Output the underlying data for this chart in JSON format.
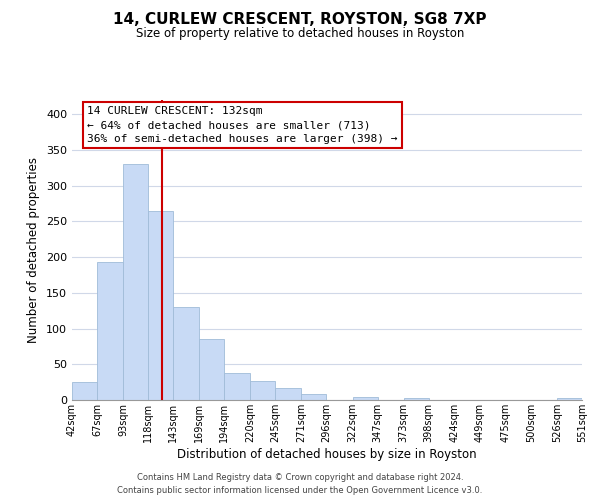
{
  "title": "14, CURLEW CRESCENT, ROYSTON, SG8 7XP",
  "subtitle": "Size of property relative to detached houses in Royston",
  "xlabel": "Distribution of detached houses by size in Royston",
  "ylabel": "Number of detached properties",
  "bar_color": "#c8daf5",
  "bar_edge_color": "#a0bcd8",
  "bin_edges": [
    42,
    67,
    93,
    118,
    143,
    169,
    194,
    220,
    245,
    271,
    296,
    322,
    347,
    373,
    398,
    424,
    449,
    475,
    500,
    526,
    551
  ],
  "bar_heights": [
    25,
    193,
    330,
    265,
    130,
    86,
    38,
    26,
    17,
    8,
    0,
    4,
    0,
    3,
    0,
    0,
    0,
    0,
    0,
    3
  ],
  "tick_labels": [
    "42sqm",
    "67sqm",
    "93sqm",
    "118sqm",
    "143sqm",
    "169sqm",
    "194sqm",
    "220sqm",
    "245sqm",
    "271sqm",
    "296sqm",
    "322sqm",
    "347sqm",
    "373sqm",
    "398sqm",
    "424sqm",
    "449sqm",
    "475sqm",
    "500sqm",
    "526sqm",
    "551sqm"
  ],
  "vline_x": 132,
  "vline_color": "#cc0000",
  "annotation_title": "14 CURLEW CRESCENT: 132sqm",
  "annotation_line1": "← 64% of detached houses are smaller (713)",
  "annotation_line2": "36% of semi-detached houses are larger (398) →",
  "ylim": [
    0,
    420
  ],
  "yticks": [
    0,
    50,
    100,
    150,
    200,
    250,
    300,
    350,
    400
  ],
  "grid_color": "#d0d8e8",
  "footer1": "Contains HM Land Registry data © Crown copyright and database right 2024.",
  "footer2": "Contains public sector information licensed under the Open Government Licence v3.0."
}
